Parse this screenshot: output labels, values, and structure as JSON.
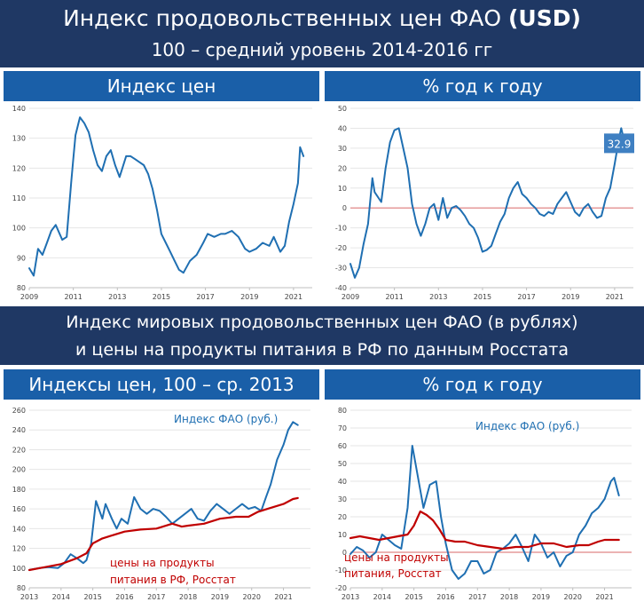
{
  "header": {
    "title": "Индекс продовольственных цен ФАО",
    "title_bold": "(USD)",
    "subtitle": "100 – средний уровень 2014-2016 гг"
  },
  "section2": {
    "line1": "Индекс мировых продовольственных цен ФАО (в рублях)",
    "line2": "и цены на продукты питания в РФ по данным Росстата"
  },
  "colors": {
    "band": "#1f3864",
    "panel_header": "#1a5fa8",
    "fao": "#1f6fb2",
    "rosstat": "#c00000",
    "zero_line": "#e69a9a"
  },
  "chart_data": [
    {
      "id": "c1",
      "type": "line",
      "panel_title": "Индекс цен",
      "xlim": [
        2009,
        2021.85
      ],
      "ylim": [
        80,
        140
      ],
      "xticks": [
        "2009",
        "2011",
        "2013",
        "2015",
        "2017",
        "2019",
        "2021"
      ],
      "yticks": [
        "80",
        "90",
        "100",
        "110",
        "120",
        "130",
        "140"
      ],
      "grid": "horizontal",
      "series": [
        {
          "color": "#1f6fb2",
          "x": [
            2009.0,
            2009.2,
            2009.4,
            2009.6,
            2009.8,
            2010.0,
            2010.2,
            2010.5,
            2010.7,
            2010.9,
            2011.0,
            2011.1,
            2011.3,
            2011.5,
            2011.7,
            2011.9,
            2012.1,
            2012.3,
            2012.5,
            2012.7,
            2012.9,
            2013.1,
            2013.4,
            2013.6,
            2013.8,
            2014.0,
            2014.2,
            2014.4,
            2014.6,
            2014.8,
            2015.0,
            2015.2,
            2015.4,
            2015.6,
            2015.8,
            2016.0,
            2016.3,
            2016.6,
            2016.9,
            2017.1,
            2017.4,
            2017.7,
            2017.9,
            2018.2,
            2018.5,
            2018.8,
            2019.0,
            2019.3,
            2019.6,
            2019.9,
            2020.1,
            2020.4,
            2020.6,
            2020.8,
            2021.0,
            2021.2,
            2021.3,
            2021.45
          ],
          "values": [
            86.5,
            84,
            93,
            91,
            95,
            99,
            101,
            96,
            97,
            115,
            123,
            131,
            137,
            135,
            132,
            126,
            121,
            119,
            124,
            126,
            121,
            117,
            124,
            124,
            123,
            122,
            121,
            118,
            113,
            106,
            98,
            95,
            92,
            89,
            86,
            85,
            89,
            91,
            95,
            98,
            97,
            98,
            98,
            99,
            97,
            93,
            92,
            93,
            95,
            94,
            97,
            92,
            94,
            102,
            108,
            115,
            127,
            124
          ]
        }
      ]
    },
    {
      "id": "c2",
      "type": "line",
      "panel_title": "% год к году",
      "xlim": [
        2009,
        2021.85
      ],
      "ylim": [
        -40,
        50
      ],
      "xticks": [
        "2009",
        "2011",
        "2013",
        "2015",
        "2017",
        "2019",
        "2021"
      ],
      "yticks": [
        "-40",
        "-30",
        "-20",
        "-10",
        "0",
        "10",
        "20",
        "30",
        "40",
        "50"
      ],
      "grid": "horizontal",
      "callout": "32.9",
      "series": [
        {
          "color": "#1f6fb2",
          "x": [
            2009.0,
            2009.2,
            2009.4,
            2009.6,
            2009.8,
            2010.0,
            2010.1,
            2010.4,
            2010.6,
            2010.8,
            2011.0,
            2011.2,
            2011.4,
            2011.6,
            2011.8,
            2012.0,
            2012.2,
            2012.4,
            2012.6,
            2012.8,
            2013.0,
            2013.2,
            2013.4,
            2013.6,
            2013.8,
            2014.0,
            2014.2,
            2014.4,
            2014.6,
            2014.8,
            2015.0,
            2015.2,
            2015.4,
            2015.6,
            2015.8,
            2016.0,
            2016.2,
            2016.4,
            2016.6,
            2016.8,
            2017.0,
            2017.2,
            2017.4,
            2017.6,
            2017.8,
            2018.0,
            2018.2,
            2018.4,
            2018.6,
            2018.8,
            2019.0,
            2019.2,
            2019.4,
            2019.6,
            2019.8,
            2020.0,
            2020.2,
            2020.4,
            2020.6,
            2020.8,
            2021.0,
            2021.2,
            2021.3,
            2021.45
          ],
          "values": [
            -28,
            -35,
            -30,
            -18,
            -8,
            15,
            8,
            3,
            20,
            33,
            39,
            40,
            30,
            20,
            2,
            -8,
            -14,
            -8,
            0,
            2,
            -6,
            5,
            -5,
            0,
            1,
            -1,
            -4,
            -8,
            -10,
            -15,
            -22,
            -21,
            -19,
            -13,
            -7,
            -3,
            5,
            10,
            13,
            7,
            5,
            2,
            0,
            -3,
            -4,
            -2,
            -3,
            2,
            5,
            8,
            3,
            -2,
            -4,
            0,
            2,
            -2,
            -5,
            -4,
            5,
            10,
            22,
            35,
            40,
            32.9
          ]
        }
      ]
    },
    {
      "id": "c3",
      "type": "line",
      "panel_title": "Индексы цен, 100 – ср. 2013",
      "xlim": [
        2013,
        2021.85
      ],
      "ylim": [
        80,
        260
      ],
      "xticks": [
        "2013",
        "2014",
        "2015",
        "2016",
        "2017",
        "2018",
        "2019",
        "2020",
        "2021"
      ],
      "yticks": [
        "80",
        "100",
        "120",
        "140",
        "160",
        "180",
        "200",
        "220",
        "240",
        "260"
      ],
      "grid": "horizontal",
      "series": [
        {
          "name": "Индекс ФАО (руб.)",
          "color": "#1f6fb2",
          "x": [
            2013.0,
            2013.3,
            2013.6,
            2013.9,
            2014.1,
            2014.3,
            2014.5,
            2014.7,
            2014.8,
            2014.95,
            2015.1,
            2015.3,
            2015.4,
            2015.6,
            2015.75,
            2015.9,
            2016.1,
            2016.3,
            2016.5,
            2016.7,
            2016.9,
            2017.1,
            2017.3,
            2017.5,
            2017.7,
            2017.9,
            2018.1,
            2018.3,
            2018.5,
            2018.7,
            2018.9,
            2019.1,
            2019.3,
            2019.5,
            2019.7,
            2019.9,
            2020.1,
            2020.3,
            2020.45,
            2020.6,
            2020.8,
            2021.0,
            2021.15,
            2021.3,
            2021.45
          ],
          "values": [
            98,
            100,
            101,
            100,
            105,
            114,
            110,
            105,
            108,
            125,
            168,
            150,
            165,
            150,
            140,
            150,
            145,
            172,
            160,
            155,
            160,
            158,
            152,
            145,
            150,
            155,
            160,
            150,
            148,
            158,
            165,
            160,
            155,
            160,
            165,
            160,
            162,
            158,
            172,
            185,
            210,
            225,
            240,
            248,
            245
          ]
        },
        {
          "name": "цены на продукты питания в РФ, Росстат",
          "color": "#c00000",
          "x": [
            2013.0,
            2013.5,
            2014.0,
            2014.5,
            2014.8,
            2015.0,
            2015.3,
            2015.6,
            2016.0,
            2016.5,
            2017.0,
            2017.5,
            2017.8,
            2018.0,
            2018.5,
            2019.0,
            2019.5,
            2019.9,
            2020.2,
            2020.5,
            2021.0,
            2021.3,
            2021.45
          ],
          "values": [
            98,
            101,
            104,
            110,
            115,
            125,
            130,
            133,
            137,
            139,
            140,
            145,
            142,
            143,
            145,
            150,
            152,
            152,
            157,
            160,
            165,
            170,
            171
          ]
        }
      ],
      "annotations": {
        "fao": "Индекс ФАО (руб.)",
        "rosstat_line1": "цены на продукты",
        "rosstat_line2": "питания в РФ, Росстат"
      }
    },
    {
      "id": "c4",
      "type": "line",
      "panel_title": "% год к году",
      "xlim": [
        2013,
        2021.85
      ],
      "ylim": [
        -20,
        80
      ],
      "xticks": [
        "2013",
        "2014",
        "2015",
        "2016",
        "2017",
        "2018",
        "2019",
        "2020",
        "2021"
      ],
      "yticks": [
        "-20",
        "-10",
        "0",
        "10",
        "20",
        "30",
        "40",
        "50",
        "60",
        "70",
        "80"
      ],
      "grid": "horizontal",
      "series": [
        {
          "name": "Индекс ФАО (руб.)",
          "color": "#1f6fb2",
          "x": [
            2013.0,
            2013.2,
            2013.4,
            2013.6,
            2013.8,
            2014.0,
            2014.2,
            2014.4,
            2014.6,
            2014.8,
            2014.95,
            2015.1,
            2015.3,
            2015.5,
            2015.7,
            2015.85,
            2016.0,
            2016.2,
            2016.4,
            2016.6,
            2016.8,
            2017.0,
            2017.2,
            2017.4,
            2017.6,
            2017.8,
            2018.0,
            2018.2,
            2018.4,
            2018.6,
            2018.8,
            2019.0,
            2019.2,
            2019.4,
            2019.6,
            2019.8,
            2020.0,
            2020.2,
            2020.4,
            2020.6,
            2020.8,
            2021.0,
            2021.2,
            2021.3,
            2021.45
          ],
          "values": [
            -1,
            3,
            1,
            -3,
            0,
            10,
            7,
            4,
            2,
            25,
            60,
            45,
            25,
            38,
            40,
            20,
            5,
            -10,
            -15,
            -12,
            -5,
            -5,
            -12,
            -10,
            0,
            2,
            5,
            10,
            3,
            -5,
            10,
            5,
            -3,
            0,
            -8,
            -2,
            0,
            10,
            15,
            22,
            25,
            30,
            40,
            42,
            32
          ]
        },
        {
          "name": "цены на продукты питания в РФ, Росстат",
          "color": "#c00000",
          "x": [
            2013.0,
            2013.3,
            2013.6,
            2013.9,
            2014.2,
            2014.5,
            2014.8,
            2015.0,
            2015.2,
            2015.4,
            2015.6,
            2015.8,
            2016.0,
            2016.3,
            2016.6,
            2017.0,
            2017.4,
            2017.8,
            2018.2,
            2018.6,
            2019.0,
            2019.4,
            2019.8,
            2020.2,
            2020.5,
            2020.8,
            2021.0,
            2021.2,
            2021.45
          ],
          "values": [
            8,
            9,
            8,
            7,
            8,
            9,
            10,
            15,
            23,
            21,
            18,
            13,
            7,
            6,
            6,
            4,
            3,
            2,
            3,
            3,
            5,
            5,
            3,
            4,
            4,
            6,
            7,
            7,
            7
          ]
        }
      ],
      "annotations": {
        "fao": "Индекс ФАО (руб.)",
        "rosstat_line1": "цены на продукты",
        "rosstat_line2": "питания, Росстат"
      }
    }
  ]
}
